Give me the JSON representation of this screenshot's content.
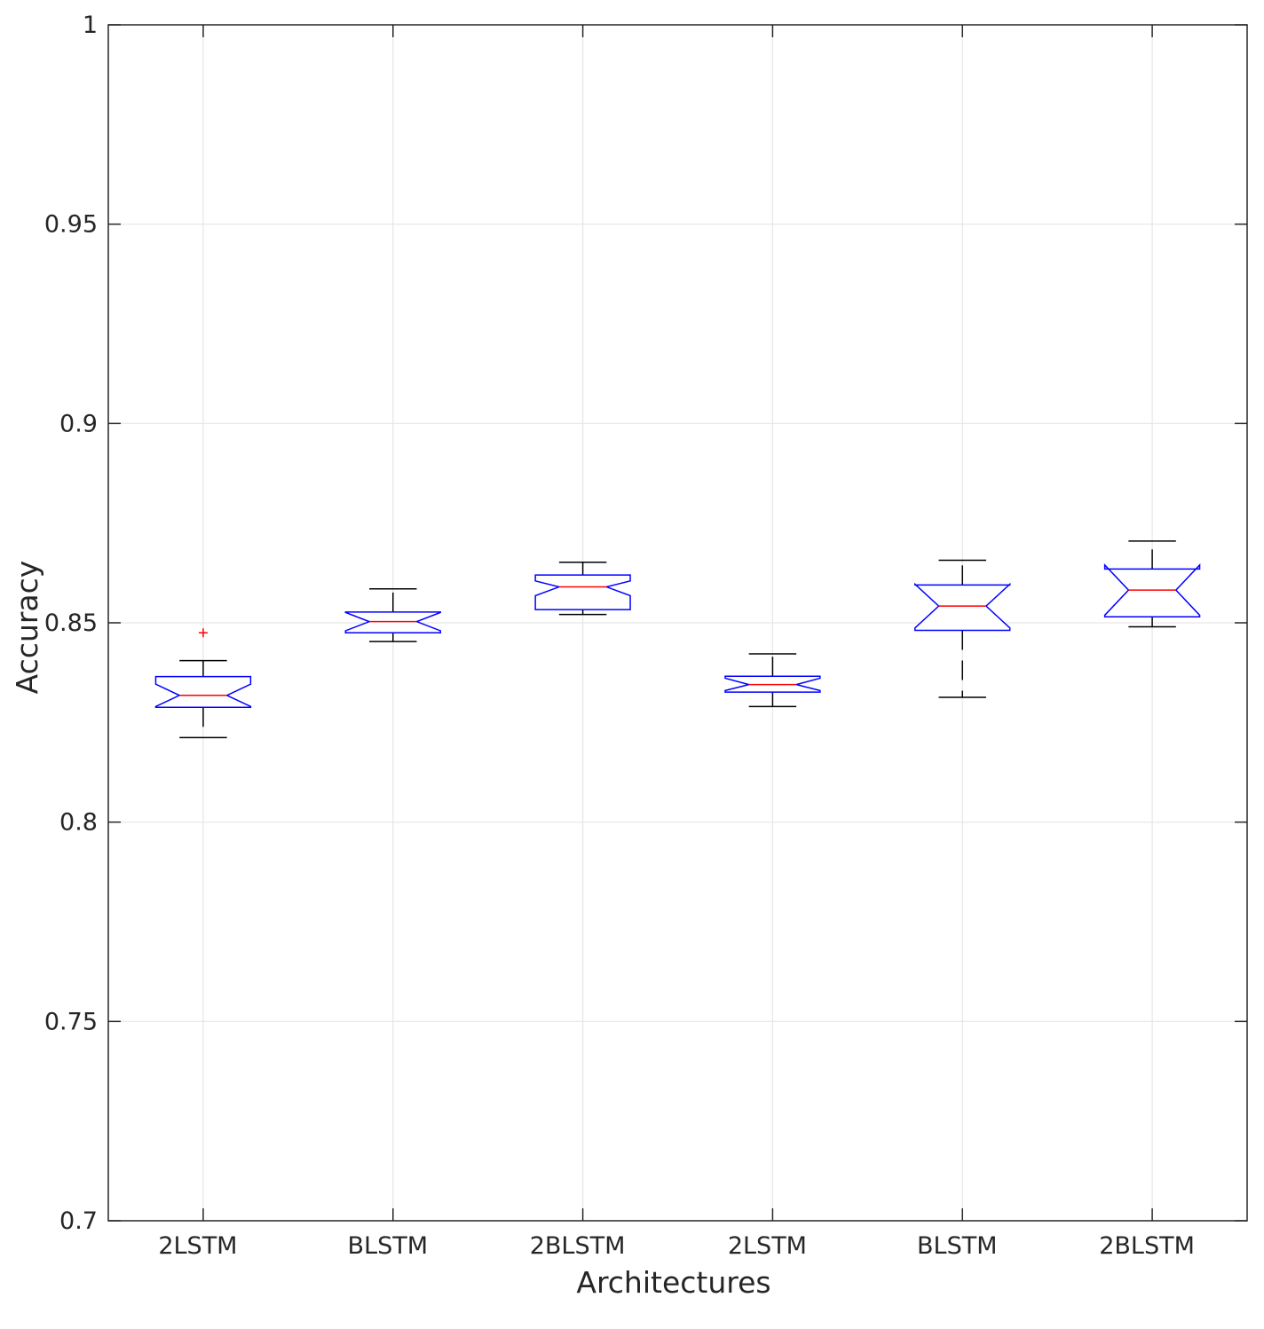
{
  "chart_data": {
    "type": "box",
    "notched": true,
    "xlabel": "Architectures",
    "ylabel": "Accuracy",
    "ylim": [
      0.7,
      1
    ],
    "yticks": [
      "0.7",
      "0.75",
      "0.8",
      "0.85",
      "0.9",
      "0.95",
      "1"
    ],
    "ytick_values": [
      0.7,
      0.75,
      0.8,
      0.85,
      0.9,
      0.95,
      1.0
    ],
    "grid": true,
    "colors": {
      "box": "#0000ff",
      "median": "#ff0000",
      "whisker": "#000000",
      "outlier": "#ff0000",
      "grid": "#e6e6e6",
      "axis": "#262626"
    },
    "categories": [
      "2LSTM",
      "BLSTM",
      "2BLSTM",
      "2LSTM",
      "BLSTM",
      "2BLSTM"
    ],
    "boxes": [
      {
        "whisker_low": 0.8212,
        "q1": 0.8288,
        "median": 0.8318,
        "q3": 0.8365,
        "whisker_high": 0.8405,
        "notch_low": 0.829,
        "notch_high": 0.8346,
        "outliers": [
          0.8475
        ]
      },
      {
        "whisker_low": 0.8453,
        "q1": 0.8475,
        "median": 0.8503,
        "q3": 0.8527,
        "whisker_high": 0.8585,
        "notch_low": 0.848,
        "notch_high": 0.8526,
        "outliers": []
      },
      {
        "whisker_low": 0.8521,
        "q1": 0.8533,
        "median": 0.859,
        "q3": 0.862,
        "whisker_high": 0.8652,
        "notch_low": 0.8568,
        "notch_high": 0.8605,
        "outliers": []
      },
      {
        "whisker_low": 0.829,
        "q1": 0.8326,
        "median": 0.8345,
        "q3": 0.8366,
        "whisker_high": 0.8422,
        "notch_low": 0.833,
        "notch_high": 0.8361,
        "outliers": []
      },
      {
        "whisker_low": 0.8313,
        "q1": 0.8481,
        "median": 0.8542,
        "q3": 0.8595,
        "whisker_high": 0.8657,
        "notch_low": 0.8487,
        "notch_high": 0.8597,
        "outliers": []
      },
      {
        "whisker_low": 0.849,
        "q1": 0.8515,
        "median": 0.8582,
        "q3": 0.8635,
        "whisker_high": 0.8705,
        "notch_low": 0.8519,
        "notch_high": 0.8645,
        "outliers": []
      }
    ]
  }
}
